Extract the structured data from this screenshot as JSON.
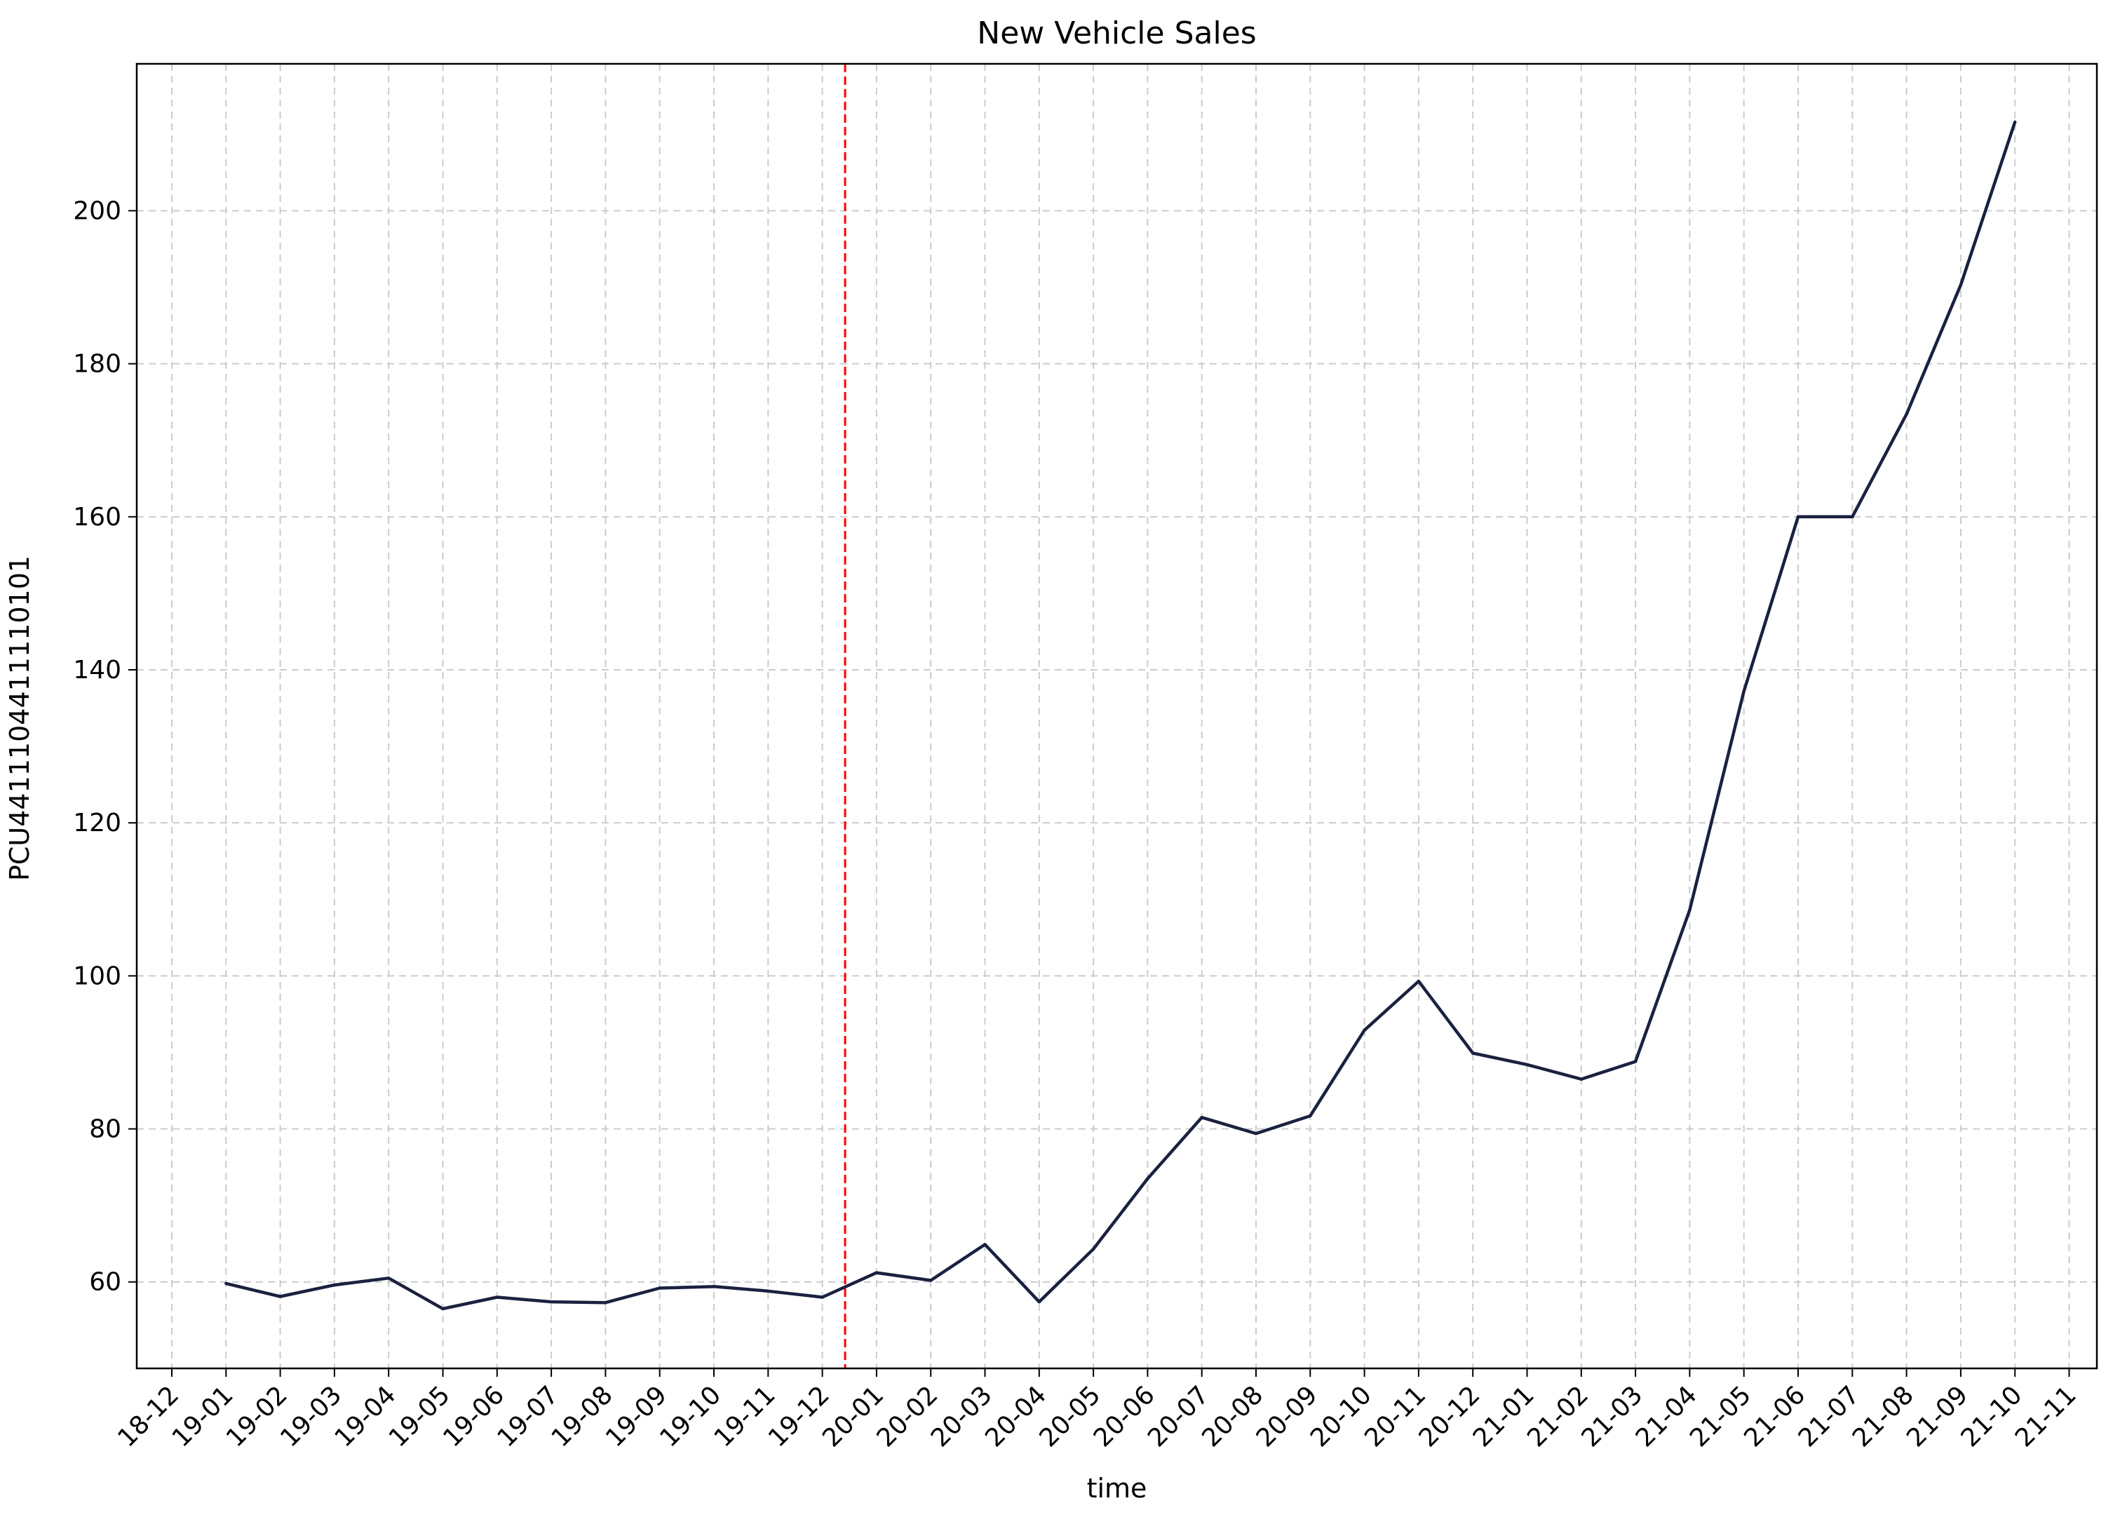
{
  "chart_data": {
    "type": "line",
    "title": "New Vehicle Sales",
    "xlabel": "time",
    "ylabel": "PCU4411104411110101",
    "ylim": [
      48.7,
      219.2
    ],
    "yticks": [
      60,
      80,
      100,
      120,
      140,
      160,
      180,
      200
    ],
    "xticks": [
      "18-12",
      "19-01",
      "19-02",
      "19-03",
      "19-04",
      "19-05",
      "19-06",
      "19-07",
      "19-08",
      "19-09",
      "19-10",
      "19-11",
      "19-12",
      "20-01",
      "20-02",
      "20-03",
      "20-04",
      "20-05",
      "20-06",
      "20-07",
      "20-08",
      "20-09",
      "20-10",
      "20-11",
      "20-12",
      "21-01",
      "21-02",
      "21-03",
      "21-04",
      "21-05",
      "21-06",
      "21-07",
      "21-08",
      "21-09",
      "21-10",
      "21-11"
    ],
    "grid": true,
    "series": [
      {
        "color": "#1a2140",
        "x": [
          "19-01",
          "19-02",
          "19-03",
          "19-04",
          "19-05",
          "19-06",
          "19-07",
          "19-08",
          "19-09",
          "19-10",
          "19-11",
          "19-12",
          "20-01",
          "20-02",
          "20-03",
          "20-04",
          "20-05",
          "20-06",
          "20-07",
          "20-08",
          "20-09",
          "20-10",
          "20-11",
          "20-12",
          "21-01",
          "21-02",
          "21-03",
          "21-04",
          "21-05",
          "21-06",
          "21-07",
          "21-08",
          "21-09",
          "21-10"
        ],
        "values": [
          59.8,
          58.1,
          59.6,
          60.5,
          56.5,
          58.0,
          57.4,
          57.3,
          59.2,
          59.4,
          58.8,
          58.0,
          61.2,
          60.2,
          64.9,
          57.4,
          64.3,
          73.5,
          81.5,
          79.4,
          81.7,
          92.9,
          99.3,
          89.9,
          88.4,
          86.5,
          88.8,
          108.6,
          137.2,
          160.0,
          160.0,
          173.4,
          190.3,
          211.6
        ]
      }
    ],
    "annotations": [
      {
        "type": "vline",
        "x": "19-12",
        "offset_fraction": 0.42,
        "style": "dashed",
        "color": "#ff0000"
      }
    ]
  }
}
